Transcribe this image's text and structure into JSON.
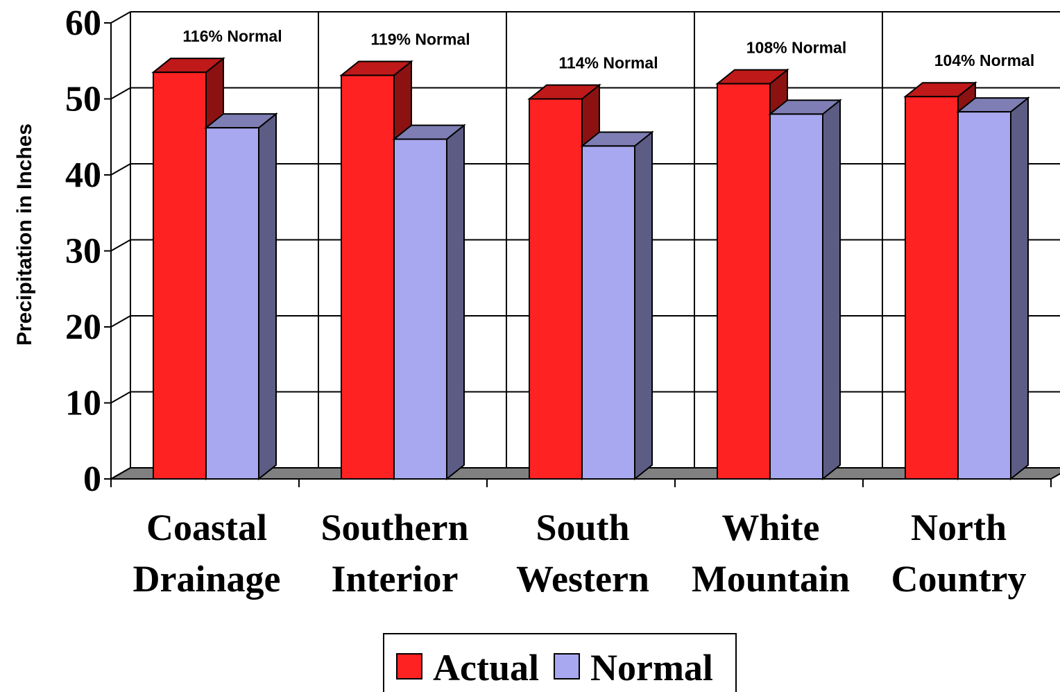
{
  "chart_data": {
    "type": "bar3d",
    "y_label": "Precipitation in Inches",
    "categories": [
      "Coastal\nDrainage",
      "Southern\nInterior",
      "South\nWestern",
      "White\nMountain",
      "North\nCountry"
    ],
    "annotations": [
      "116% Normal",
      "119% Normal",
      "114% Normal",
      "108% Normal",
      "104% Normal"
    ],
    "series": [
      {
        "name": "Actual",
        "color": "#ff2222",
        "values": [
          53.5,
          53.1,
          50.0,
          52.0,
          50.3
        ]
      },
      {
        "name": "Normal",
        "color": "#a8a8f0",
        "values": [
          46.2,
          44.7,
          43.8,
          48.0,
          48.3
        ]
      }
    ],
    "ylim": [
      0,
      60
    ],
    "yticks": [
      0,
      10,
      20,
      30,
      40,
      50,
      60
    ],
    "grid": true
  }
}
